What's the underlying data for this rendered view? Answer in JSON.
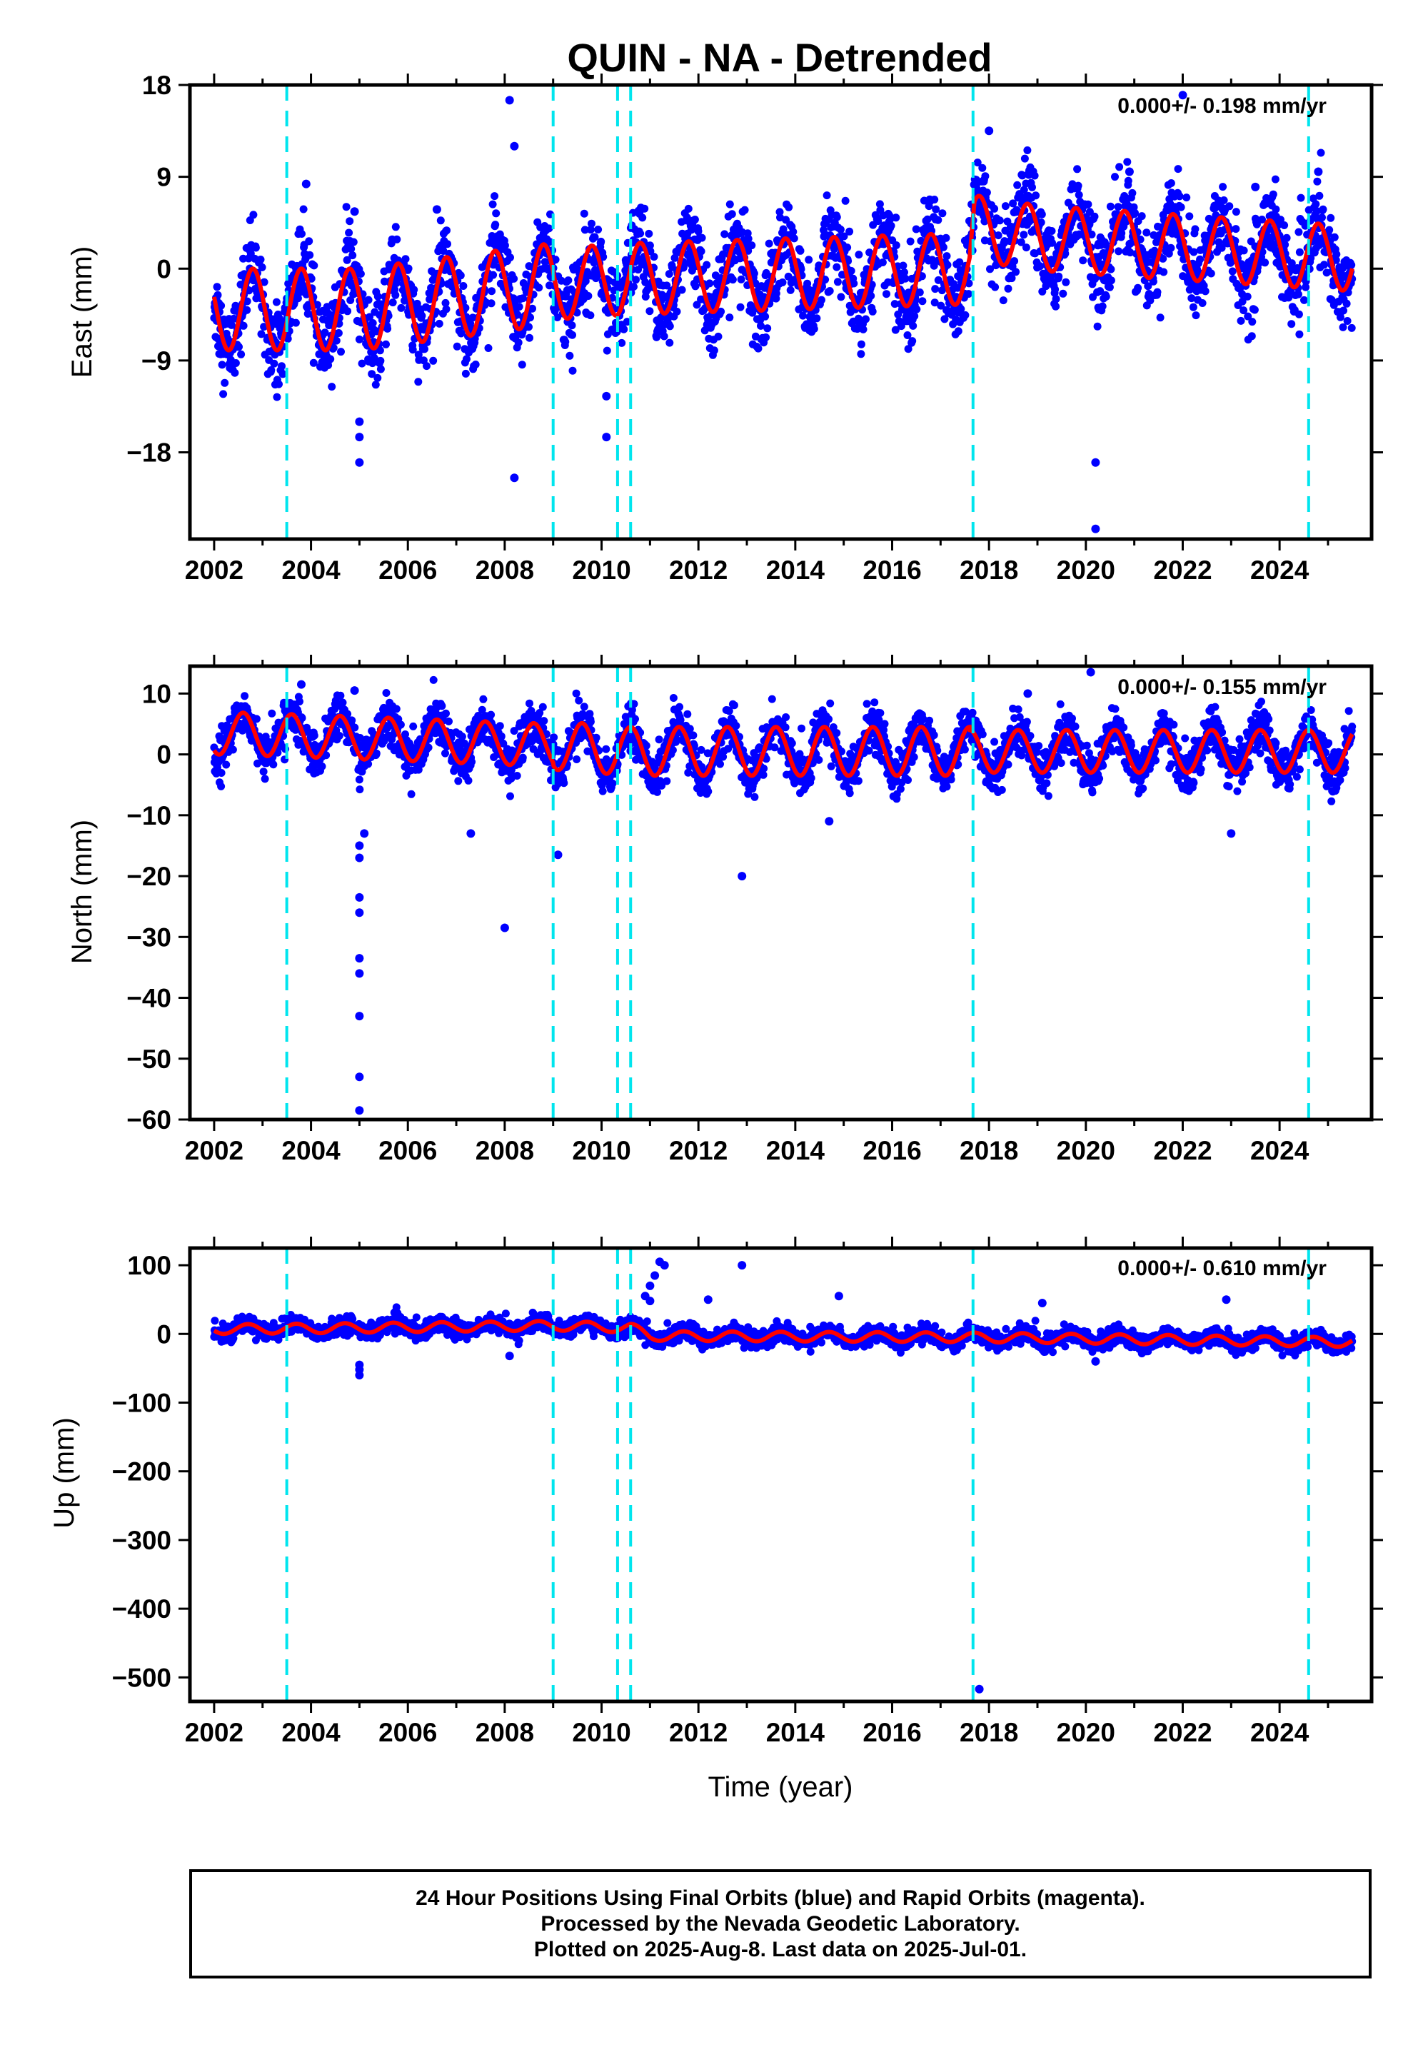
{
  "title": "QUIN - NA - Detrended",
  "xlabel": "Time (year)",
  "colors": {
    "data": "#0000ff",
    "model": "#ff0000",
    "events": "#00e5ee",
    "frame": "#000000"
  },
  "footer": {
    "line1": "24 Hour Positions Using Final Orbits (blue) and Rapid Orbits (magenta).",
    "line2": "Processed by the Nevada Geodetic Laboratory.",
    "line3": "Plotted on 2025-Aug-8. Last data on 2025-Jul-01."
  },
  "chart_data": [
    {
      "type": "scatter",
      "component": "east",
      "ylabel": "East (mm)",
      "rate_text": "0.000+/- 0.198 mm/yr",
      "xlim": [
        2001.5,
        2025.9
      ],
      "ylim": [
        -26.5,
        18
      ],
      "xticks": [
        2002,
        2004,
        2006,
        2008,
        2010,
        2012,
        2014,
        2016,
        2018,
        2020,
        2022,
        2024
      ],
      "yticks": [
        18,
        9,
        0,
        -9,
        -18
      ],
      "ytick_labels": [
        "18",
        "9",
        "0",
        "−9",
        "−18"
      ],
      "event_lines": [
        2003.5,
        2009.0,
        2010.33,
        2010.6,
        2017.67,
        2024.6
      ],
      "data_range": [
        2002.0,
        2025.5
      ],
      "model": {
        "amplitude_segments": [
          [
            2002.0,
            2009.0,
            4.0
          ],
          [
            2009.0,
            2017.6,
            3.5
          ],
          [
            2017.6,
            2025.5,
            3.2
          ]
        ],
        "phase_peak_year_fraction": 0.8,
        "offset_points": [
          [
            2002.0,
            -4.0
          ],
          [
            2005.0,
            -4.0
          ],
          [
            2009.0,
            -1.5
          ],
          [
            2010.6,
            -1.0
          ],
          [
            2017.6,
            0.0
          ],
          [
            2017.7,
            4.0
          ],
          [
            2019.0,
            3.0
          ],
          [
            2025.5,
            1.0
          ]
        ]
      },
      "scatter_sd": 2.0,
      "outliers": [
        [
          2008.1,
          16.5
        ],
        [
          2008.2,
          12
        ],
        [
          2008.2,
          -20.5
        ],
        [
          2005.0,
          -19
        ],
        [
          2005.0,
          -16.5
        ],
        [
          2005.0,
          -15
        ],
        [
          2010.1,
          -12.5
        ],
        [
          2010.1,
          -16.5
        ],
        [
          2018.0,
          13.5
        ],
        [
          2020.2,
          -19
        ],
        [
          2020.2,
          -25.5
        ],
        [
          2022.0,
          17
        ],
        [
          2023.5,
          8.0
        ],
        [
          2024.8,
          9.5
        ],
        [
          2020.9,
          9.5
        ],
        [
          2003.9,
          8.3
        ],
        [
          2004.9,
          5.6
        ],
        [
          2006.6,
          5.8
        ]
      ]
    },
    {
      "type": "scatter",
      "component": "north",
      "ylabel": "North (mm)",
      "rate_text": "0.000+/- 0.155 mm/yr",
      "xlim": [
        2001.5,
        2025.9
      ],
      "ylim": [
        -60,
        14.5
      ],
      "xticks": [
        2002,
        2004,
        2006,
        2008,
        2010,
        2012,
        2014,
        2016,
        2018,
        2020,
        2022,
        2024
      ],
      "yticks": [
        10,
        0,
        -10,
        -20,
        -30,
        -40,
        -50,
        -60
      ],
      "ytick_labels": [
        "10",
        "0",
        "−10",
        "−20",
        "−30",
        "−40",
        "−50",
        "−60"
      ],
      "event_lines": [
        2003.5,
        2009.0,
        2010.33,
        2010.6,
        2017.67,
        2024.6
      ],
      "data_range": [
        2002.0,
        2025.5
      ],
      "model": {
        "amplitude_segments": [
          [
            2002.0,
            2009.0,
            3.5
          ],
          [
            2009.0,
            2017.6,
            4.0
          ],
          [
            2017.6,
            2025.5,
            3.5
          ]
        ],
        "phase_peak_year_fraction": 0.6,
        "offset_points": [
          [
            2002.0,
            3.5
          ],
          [
            2004.0,
            3.0
          ],
          [
            2009.0,
            1.5
          ],
          [
            2010.6,
            0.5
          ],
          [
            2017.6,
            0.5
          ],
          [
            2025.5,
            0.5
          ]
        ]
      },
      "scatter_sd": 1.8,
      "outliers": [
        [
          2005.0,
          -58.5
        ],
        [
          2005.0,
          -53
        ],
        [
          2005.0,
          -43
        ],
        [
          2005.0,
          -36
        ],
        [
          2005.0,
          -33.5
        ],
        [
          2005.0,
          -26
        ],
        [
          2005.0,
          -23.5
        ],
        [
          2005.0,
          -17
        ],
        [
          2005.0,
          -15
        ],
        [
          2005.1,
          -13
        ],
        [
          2008.0,
          -28.5
        ],
        [
          2009.1,
          -16.5
        ],
        [
          2012.9,
          -20
        ],
        [
          2003.8,
          11.5
        ],
        [
          2004.9,
          10.5
        ],
        [
          2018.8,
          10
        ],
        [
          2020.1,
          13.5
        ],
        [
          2023.0,
          -13
        ],
        [
          2007.3,
          -13
        ],
        [
          2014.7,
          -11
        ]
      ]
    },
    {
      "type": "scatter",
      "component": "up",
      "ylabel": "Up (mm)",
      "rate_text": "0.000+/- 0.610 mm/yr",
      "xlim": [
        2001.5,
        2025.9
      ],
      "ylim": [
        -535,
        125
      ],
      "xticks": [
        2002,
        2004,
        2006,
        2008,
        2010,
        2012,
        2014,
        2016,
        2018,
        2020,
        2022,
        2024
      ],
      "yticks": [
        100,
        0,
        -100,
        -200,
        -300,
        -400,
        -500
      ],
      "ytick_labels": [
        "100",
        "0",
        "−100",
        "−200",
        "−300",
        "−400",
        "−500"
      ],
      "event_lines": [
        2003.5,
        2009.0,
        2010.33,
        2010.6,
        2017.67,
        2024.6
      ],
      "data_range": [
        2002.0,
        2025.5
      ],
      "model": {
        "amplitude_segments": [
          [
            2002.0,
            2025.5,
            7.0
          ]
        ],
        "phase_peak_year_fraction": 0.7,
        "offset_points": [
          [
            2002.0,
            7.0
          ],
          [
            2004.0,
            8.0
          ],
          [
            2009.0,
            12.0
          ],
          [
            2010.6,
            9.0
          ],
          [
            2011.0,
            -3.0
          ],
          [
            2017.6,
            -5.0
          ],
          [
            2020.0,
            -7.0
          ],
          [
            2025.5,
            -12.0
          ]
        ]
      },
      "scatter_sd": 6.0,
      "outliers": [
        [
          2011.2,
          105
        ],
        [
          2011.3,
          100
        ],
        [
          2011.1,
          85
        ],
        [
          2011.0,
          70
        ],
        [
          2010.9,
          55
        ],
        [
          2011.0,
          48
        ],
        [
          2012.9,
          100
        ],
        [
          2012.2,
          50
        ],
        [
          2014.9,
          55
        ],
        [
          2019.1,
          45
        ],
        [
          2022.9,
          50
        ],
        [
          2005.0,
          -60
        ],
        [
          2005.0,
          -52
        ],
        [
          2005.0,
          -45
        ],
        [
          2008.1,
          -32
        ],
        [
          2020.2,
          -40
        ],
        [
          2017.8,
          -517
        ]
      ]
    }
  ],
  "panels": [
    {
      "ylabel": "East (mm)",
      "rate_text": "0.000+/- 0.198 mm/yr"
    },
    {
      "ylabel": "North (mm)",
      "rate_text": "0.000+/- 0.155 mm/yr"
    },
    {
      "ylabel": "Up (mm)",
      "rate_text": "0.000+/- 0.610 mm/yr"
    }
  ]
}
